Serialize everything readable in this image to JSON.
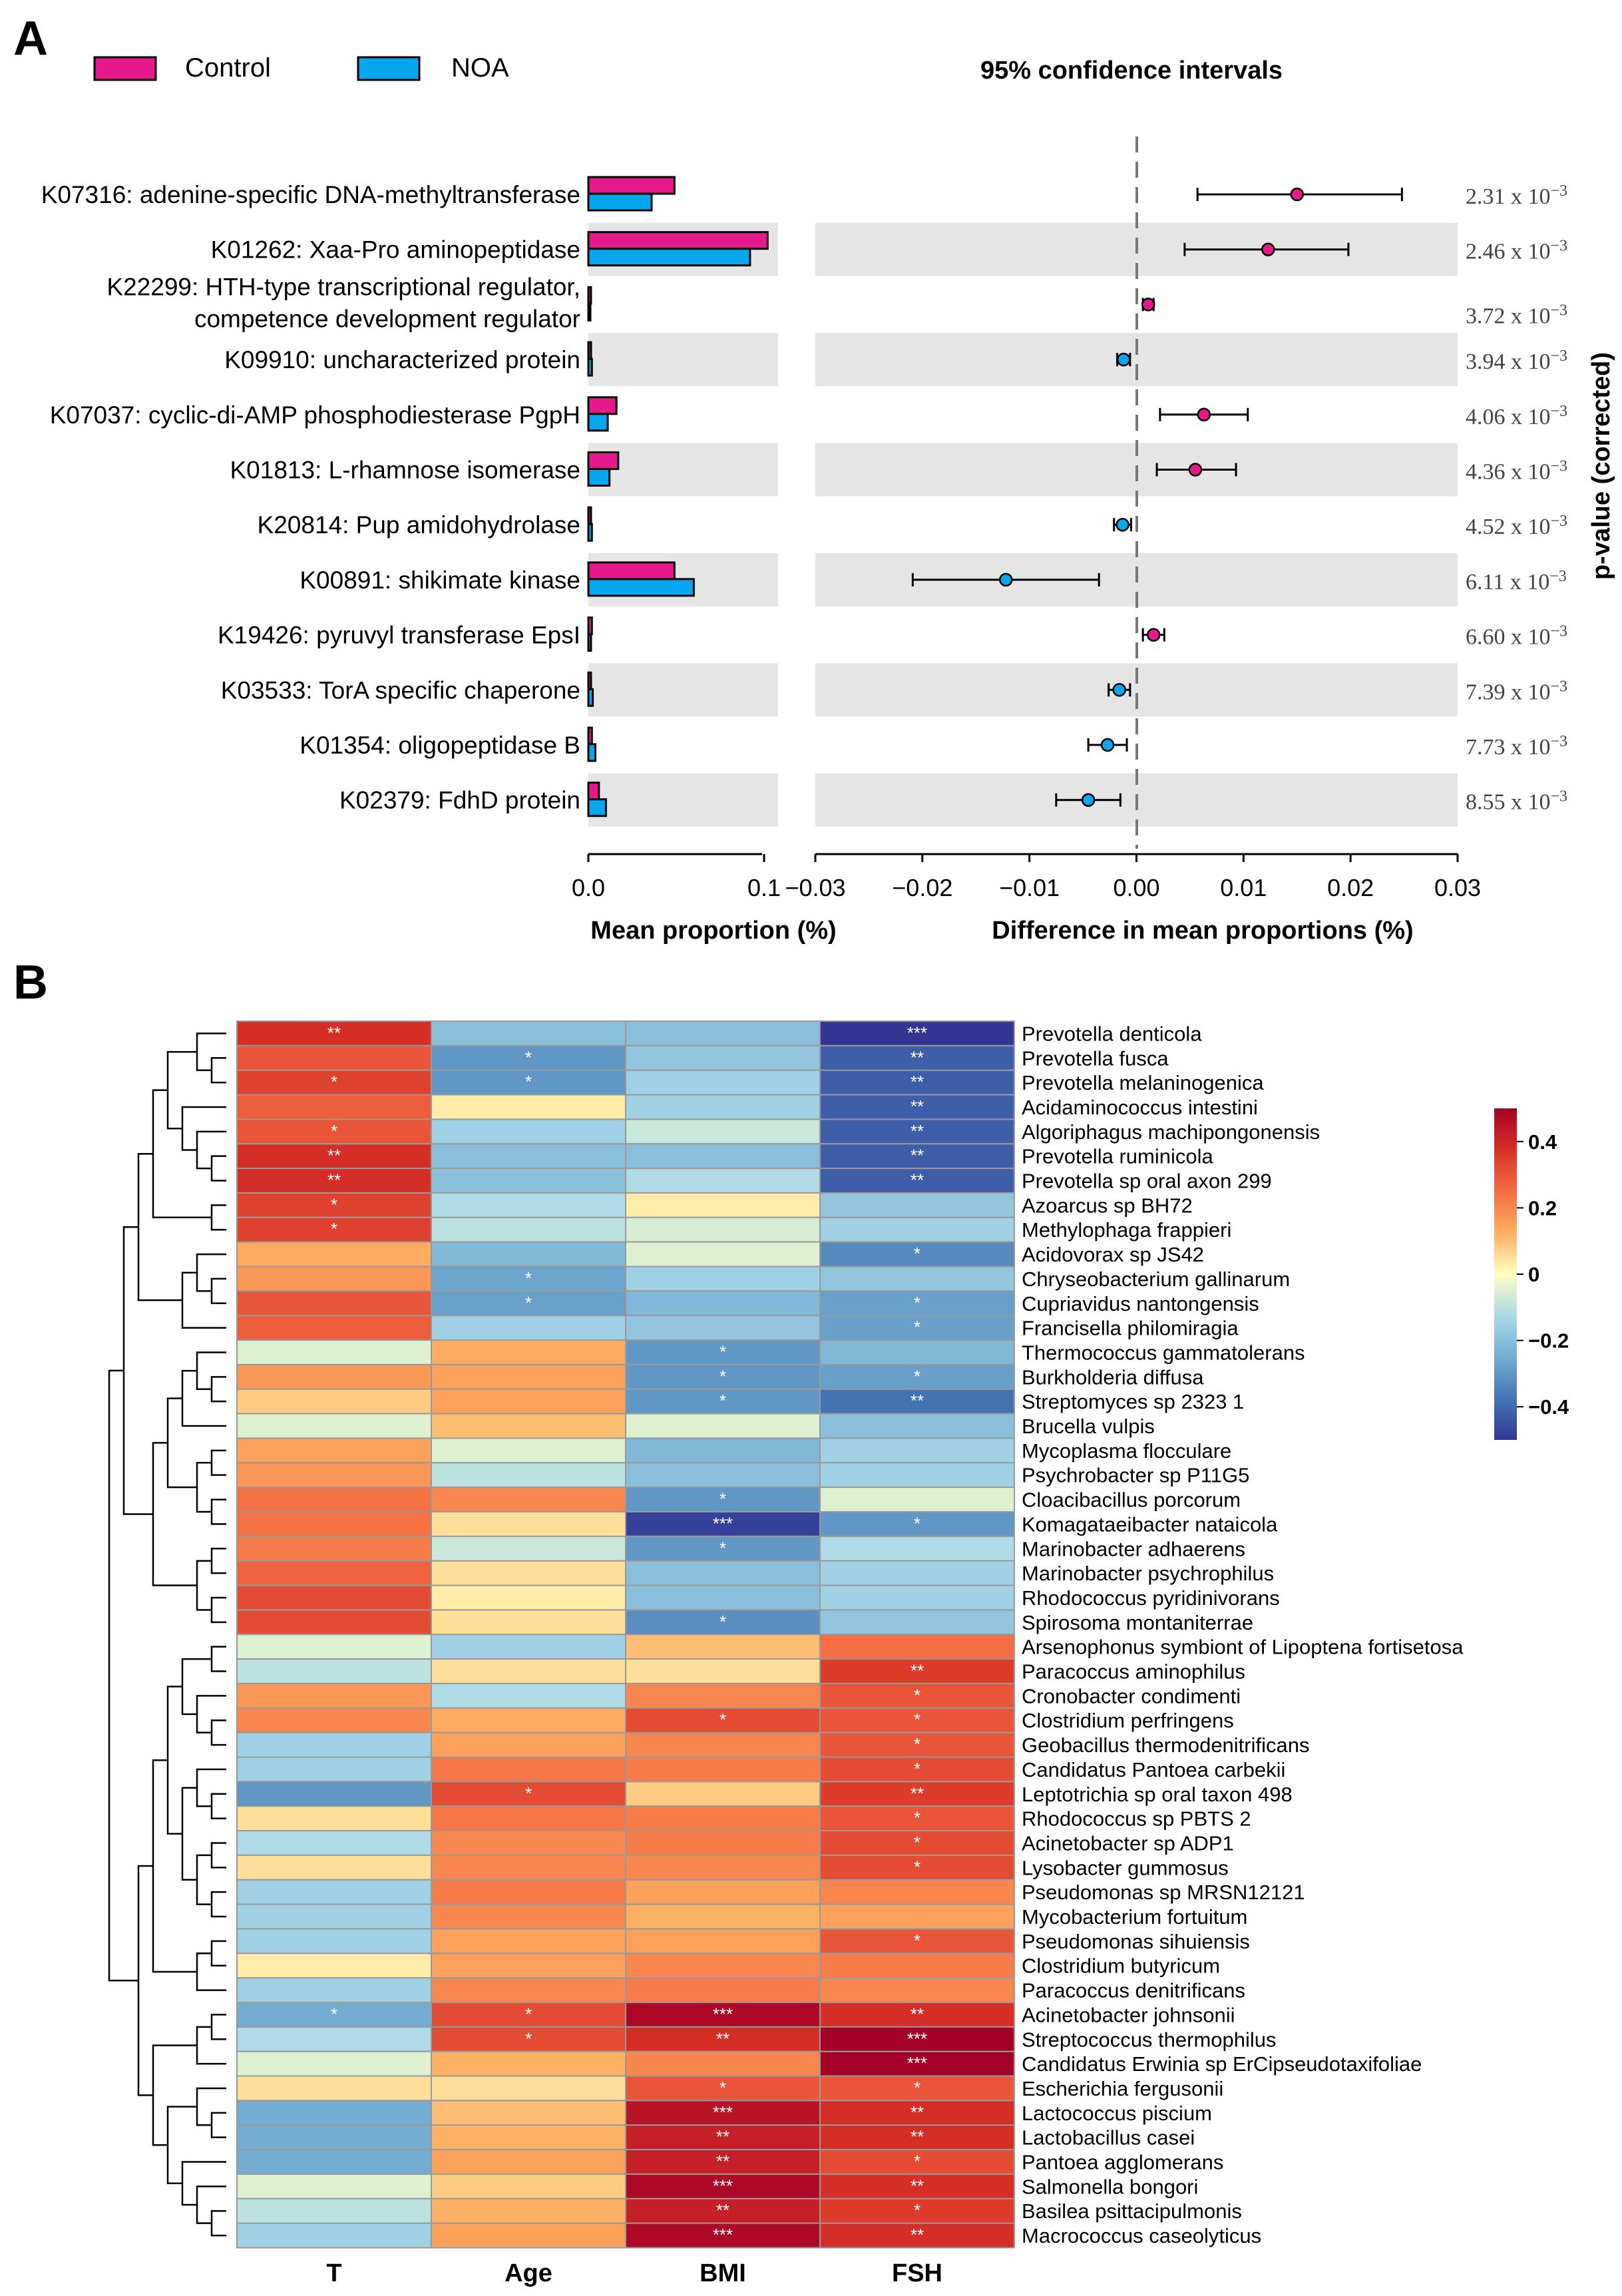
{
  "chart_data": [
    {
      "type": "bar+errorbar",
      "panel_label": "A",
      "title": "95% confidence intervals",
      "legend": [
        {
          "name": "Control",
          "color": "#e5198b"
        },
        {
          "name": "NOA",
          "color": "#06a7ee"
        }
      ],
      "bar_xlabel": "Mean proportion (%)",
      "bar_xlim": [
        0,
        0.1
      ],
      "bar_ticks": [
        "0.0",
        "0.1"
      ],
      "diff_xlabel": "Difference in mean proportions (%)",
      "diff_xlim": [
        -0.03,
        0.03
      ],
      "diff_ticks": [
        "−0.03",
        "−0.02",
        "−0.01",
        "0.00",
        "0.01",
        "0.02",
        "0.03"
      ],
      "pvalue_label": "p-value (corrected)",
      "rows": [
        {
          "label": "K07316: adenine-specific DNA-methyltransferase",
          "control": 0.049,
          "noa": 0.036,
          "diff": 0.015,
          "lo": 0.0057,
          "hi": 0.0248,
          "p": "2.31 x 10",
          "pexp": "−3"
        },
        {
          "label": "K01262: Xaa-Pro aminopeptidase",
          "control": 0.102,
          "noa": 0.092,
          "diff": 0.0123,
          "lo": 0.0045,
          "hi": 0.0198,
          "p": "2.46 x 10",
          "pexp": "−3"
        },
        {
          "label": "K22299: HTH-type transcriptional regulator,",
          "label2": "competence development regulator",
          "control": 0.0015,
          "noa": 0.001,
          "diff": 0.0011,
          "lo": 0.0006,
          "hi": 0.0016,
          "p": "3.72 x 10",
          "pexp": "−3"
        },
        {
          "label": "K09910: uncharacterized protein",
          "control": 0.0015,
          "noa": 0.002,
          "diff": -0.0012,
          "lo": -0.0018,
          "hi": -0.0006,
          "p": "3.94 x 10",
          "pexp": "−3"
        },
        {
          "label": "K07037: cyclic-di-AMP phosphodiesterase PgpH",
          "control": 0.016,
          "noa": 0.011,
          "diff": 0.0063,
          "lo": 0.0022,
          "hi": 0.0104,
          "p": "4.06 x 10",
          "pexp": "−3"
        },
        {
          "label": "K01813: L-rhamnose isomerase",
          "control": 0.017,
          "noa": 0.012,
          "diff": 0.0055,
          "lo": 0.0019,
          "hi": 0.0093,
          "p": "4.36 x 10",
          "pexp": "−3"
        },
        {
          "label": "K20814: Pup amidohydrolase",
          "control": 0.0015,
          "noa": 0.002,
          "diff": -0.0013,
          "lo": -0.0021,
          "hi": -0.0005,
          "p": "4.52 x 10",
          "pexp": "−3"
        },
        {
          "label": "K00891: shikimate kinase",
          "control": 0.049,
          "noa": 0.06,
          "diff": -0.0122,
          "lo": -0.0209,
          "hi": -0.0035,
          "p": "6.11 x 10",
          "pexp": "−3"
        },
        {
          "label": "K19426: pyruvyl transferase EpsI",
          "control": 0.002,
          "noa": 0.0015,
          "diff": 0.0016,
          "lo": 0.0006,
          "hi": 0.0026,
          "p": "6.60 x 10",
          "pexp": "−3"
        },
        {
          "label": "K03533: TorA specific chaperone",
          "control": 0.0015,
          "noa": 0.0025,
          "diff": -0.0016,
          "lo": -0.0026,
          "hi": -0.0006,
          "p": "7.39 x 10",
          "pexp": "−3"
        },
        {
          "label": "K01354: oligopeptidase B",
          "control": 0.002,
          "noa": 0.004,
          "diff": -0.0027,
          "lo": -0.0045,
          "hi": -0.0009,
          "p": "7.73 x 10",
          "pexp": "−3"
        },
        {
          "label": "K02379: FdhD protein",
          "control": 0.006,
          "noa": 0.01,
          "diff": -0.0045,
          "lo": -0.0075,
          "hi": -0.0015,
          "p": "8.55 x 10",
          "pexp": "−3"
        }
      ]
    },
    {
      "type": "heatmap",
      "panel_label": "B",
      "columns": [
        "T",
        "Age",
        "BMI",
        "FSH"
      ],
      "colorbar": {
        "min": -0.5,
        "max": 0.5,
        "ticks": [
          "0.4",
          "0.2",
          "0",
          "−0.2",
          "−0.4"
        ],
        "tick_values": [
          0.4,
          0.2,
          0,
          -0.2,
          -0.4
        ]
      },
      "rows": [
        {
          "name": "Prevotella denticola",
          "values": [
            0.38,
            -0.2,
            -0.2,
            -0.5
          ],
          "stars": [
            "**",
            "",
            "",
            "***"
          ]
        },
        {
          "name": "Prevotella fusca",
          "values": [
            0.3,
            -0.3,
            -0.18,
            -0.42
          ],
          "stars": [
            "",
            "*",
            "",
            "**"
          ]
        },
        {
          "name": "Prevotella melaninogenica",
          "values": [
            0.34,
            -0.3,
            -0.15,
            -0.42
          ],
          "stars": [
            "*",
            "*",
            "",
            "**"
          ]
        },
        {
          "name": "Acidaminococcus intestini",
          "values": [
            0.28,
            0.03,
            -0.15,
            -0.42
          ],
          "stars": [
            "",
            "",
            "",
            "**"
          ]
        },
        {
          "name": "Algoriphagus machipongonensis",
          "values": [
            0.3,
            -0.15,
            -0.08,
            -0.42
          ],
          "stars": [
            "*",
            "",
            "",
            "**"
          ]
        },
        {
          "name": "Prevotella ruminicola",
          "values": [
            0.38,
            -0.2,
            -0.2,
            -0.42
          ],
          "stars": [
            "**",
            "",
            "",
            "**"
          ]
        },
        {
          "name": "Prevotella sp oral axon 299",
          "values": [
            0.38,
            -0.2,
            -0.12,
            -0.42
          ],
          "stars": [
            "**",
            "",
            "",
            "**"
          ]
        },
        {
          "name": "Azoarcus sp BH72",
          "values": [
            0.34,
            -0.12,
            0.03,
            -0.18
          ],
          "stars": [
            "*",
            "",
            "",
            ""
          ]
        },
        {
          "name": "Methylophaga frappieri",
          "values": [
            0.34,
            -0.1,
            -0.06,
            -0.15
          ],
          "stars": [
            "*",
            "",
            "",
            ""
          ]
        },
        {
          "name": "Acidovorax sp JS42",
          "values": [
            0.13,
            -0.22,
            -0.05,
            -0.33
          ],
          "stars": [
            "",
            "",
            "",
            "*"
          ]
        },
        {
          "name": "Chryseobacterium gallinarum",
          "values": [
            0.17,
            -0.27,
            -0.15,
            -0.18
          ],
          "stars": [
            "",
            "*",
            "",
            ""
          ]
        },
        {
          "name": "Cupriavidus nantongensis",
          "values": [
            0.3,
            -0.28,
            -0.22,
            -0.28
          ],
          "stars": [
            "",
            "*",
            "",
            "*"
          ]
        },
        {
          "name": "Francisella philomiragia",
          "values": [
            0.28,
            -0.15,
            -0.18,
            -0.28
          ],
          "stars": [
            "",
            "",
            "",
            "*"
          ]
        },
        {
          "name": "Thermococcus gammatolerans",
          "values": [
            -0.05,
            0.13,
            -0.3,
            -0.22
          ],
          "stars": [
            "",
            "",
            "*",
            ""
          ]
        },
        {
          "name": "Burkholderia diffusa",
          "values": [
            0.17,
            0.15,
            -0.3,
            -0.28
          ],
          "stars": [
            "",
            "",
            "*",
            "*"
          ]
        },
        {
          "name": "Streptomyces sp 2323 1",
          "values": [
            0.08,
            0.15,
            -0.3,
            -0.38
          ],
          "stars": [
            "",
            "",
            "*",
            "**"
          ]
        },
        {
          "name": "Brucella vulpis",
          "values": [
            -0.05,
            0.1,
            -0.05,
            -0.2
          ],
          "stars": [
            "",
            "",
            "",
            ""
          ]
        },
        {
          "name": "Mycoplasma flocculare",
          "values": [
            0.15,
            -0.05,
            -0.22,
            -0.15
          ],
          "stars": [
            "",
            "",
            "",
            ""
          ]
        },
        {
          "name": "Psychrobacter sp P11G5",
          "values": [
            0.17,
            -0.1,
            -0.2,
            -0.15
          ],
          "stars": [
            "",
            "",
            "",
            ""
          ]
        },
        {
          "name": "Cloacibacillus porcorum",
          "values": [
            0.24,
            0.2,
            -0.3,
            -0.05
          ],
          "stars": [
            "",
            "",
            "*",
            ""
          ]
        },
        {
          "name": "Komagataeibacter nataicola",
          "values": [
            0.24,
            0.05,
            -0.48,
            -0.3
          ],
          "stars": [
            "",
            "",
            "***",
            "*"
          ]
        },
        {
          "name": "Marinobacter adhaerens",
          "values": [
            0.22,
            -0.08,
            -0.3,
            -0.12
          ],
          "stars": [
            "",
            "",
            "*",
            ""
          ]
        },
        {
          "name": "Marinobacter psychrophilus",
          "values": [
            0.27,
            0.05,
            -0.2,
            -0.15
          ],
          "stars": [
            "",
            "",
            "",
            ""
          ]
        },
        {
          "name": "Rhodococcus pyridinivorans",
          "values": [
            0.32,
            0.03,
            -0.2,
            -0.15
          ],
          "stars": [
            "",
            "",
            "",
            ""
          ]
        },
        {
          "name": "Spirosoma montaniterrae",
          "values": [
            0.32,
            0.05,
            -0.32,
            -0.18
          ],
          "stars": [
            "",
            "",
            "*",
            ""
          ]
        },
        {
          "name": "Arsenophonus symbiont of Lipoptena fortisetosa",
          "values": [
            -0.05,
            -0.15,
            0.1,
            0.25
          ],
          "stars": [
            "",
            "",
            "",
            ""
          ]
        },
        {
          "name": "Paracoccus aminophilus",
          "values": [
            -0.1,
            0.05,
            0.05,
            0.35
          ],
          "stars": [
            "",
            "",
            "",
            "**"
          ]
        },
        {
          "name": "Cronobacter condimenti",
          "values": [
            0.17,
            -0.12,
            0.2,
            0.3
          ],
          "stars": [
            "",
            "",
            "",
            "*"
          ]
        },
        {
          "name": "Clostridium perfringens",
          "values": [
            0.2,
            0.13,
            0.32,
            0.3
          ],
          "stars": [
            "",
            "",
            "*",
            "*"
          ]
        },
        {
          "name": "Geobacillus thermodenitrificans",
          "values": [
            -0.15,
            0.15,
            0.2,
            0.3
          ],
          "stars": [
            "",
            "",
            "",
            "*"
          ]
        },
        {
          "name": "Candidatus Pantoea carbekii",
          "values": [
            -0.15,
            0.23,
            0.22,
            0.32
          ],
          "stars": [
            "",
            "",
            "",
            "*"
          ]
        },
        {
          "name": "Leptotrichia sp oral taxon 498",
          "values": [
            -0.3,
            0.32,
            0.08,
            0.35
          ],
          "stars": [
            "",
            "*",
            "",
            "**"
          ]
        },
        {
          "name": "Rhodococcus sp PBTS 2",
          "values": [
            0.05,
            0.23,
            0.22,
            0.3
          ],
          "stars": [
            "",
            "",
            "",
            "*"
          ]
        },
        {
          "name": "Acinetobacter sp ADP1",
          "values": [
            -0.12,
            0.2,
            0.22,
            0.32
          ],
          "stars": [
            "",
            "",
            "",
            "*"
          ]
        },
        {
          "name": "Lysobacter gummosus",
          "values": [
            0.05,
            0.2,
            0.2,
            0.32
          ],
          "stars": [
            "",
            "",
            "",
            "*"
          ]
        },
        {
          "name": "Pseudomonas sp MRSN12121",
          "values": [
            -0.15,
            0.22,
            0.15,
            0.2
          ],
          "stars": [
            "",
            "",
            "",
            ""
          ]
        },
        {
          "name": "Mycobacterium fortuitum",
          "values": [
            -0.15,
            0.2,
            0.12,
            0.15
          ],
          "stars": [
            "",
            "",
            "",
            ""
          ]
        },
        {
          "name": "Pseudomonas sihuiensis",
          "values": [
            -0.15,
            0.15,
            0.15,
            0.3
          ],
          "stars": [
            "",
            "",
            "",
            "*"
          ]
        },
        {
          "name": "Clostridium butyricum",
          "values": [
            0.03,
            0.15,
            0.2,
            0.22
          ],
          "stars": [
            "",
            "",
            "",
            ""
          ]
        },
        {
          "name": "Paracoccus denitrificans",
          "values": [
            -0.15,
            0.2,
            0.22,
            0.2
          ],
          "stars": [
            "",
            "",
            "",
            ""
          ]
        },
        {
          "name": "Acinetobacter johnsonii",
          "values": [
            -0.25,
            0.32,
            0.48,
            0.38
          ],
          "stars": [
            "*",
            "*",
            "***",
            "**"
          ]
        },
        {
          "name": "Streptococcus thermophilus",
          "values": [
            -0.12,
            0.32,
            0.38,
            0.5
          ],
          "stars": [
            "",
            "*",
            "**",
            "***"
          ]
        },
        {
          "name": "Candidatus Erwinia sp ErCipseudotaxifoliae",
          "values": [
            -0.05,
            0.12,
            0.2,
            0.5
          ],
          "stars": [
            "",
            "",
            "",
            "***"
          ]
        },
        {
          "name": "Escherichia fergusonii",
          "values": [
            0.05,
            0.05,
            0.3,
            0.3
          ],
          "stars": [
            "",
            "",
            "*",
            "*"
          ]
        },
        {
          "name": "Lactococcus piscium",
          "values": [
            -0.25,
            0.1,
            0.45,
            0.38
          ],
          "stars": [
            "",
            "",
            "***",
            "**"
          ]
        },
        {
          "name": "Lactobacillus casei",
          "values": [
            -0.25,
            0.12,
            0.42,
            0.38
          ],
          "stars": [
            "",
            "",
            "**",
            "**"
          ]
        },
        {
          "name": "Pantoea agglomerans",
          "values": [
            -0.25,
            0.15,
            0.42,
            0.32
          ],
          "stars": [
            "",
            "",
            "**",
            "*"
          ]
        },
        {
          "name": "Salmonella bongori",
          "values": [
            -0.05,
            0.08,
            0.48,
            0.38
          ],
          "stars": [
            "",
            "",
            "***",
            "**"
          ]
        },
        {
          "name": "Basilea psittacipulmonis",
          "values": [
            -0.1,
            0.12,
            0.42,
            0.35
          ],
          "stars": [
            "",
            "",
            "**",
            "*"
          ]
        },
        {
          "name": "Macrococcus caseolyticus",
          "values": [
            -0.15,
            0.15,
            0.48,
            0.38
          ],
          "stars": [
            "",
            "",
            "***",
            "**"
          ]
        }
      ]
    }
  ]
}
